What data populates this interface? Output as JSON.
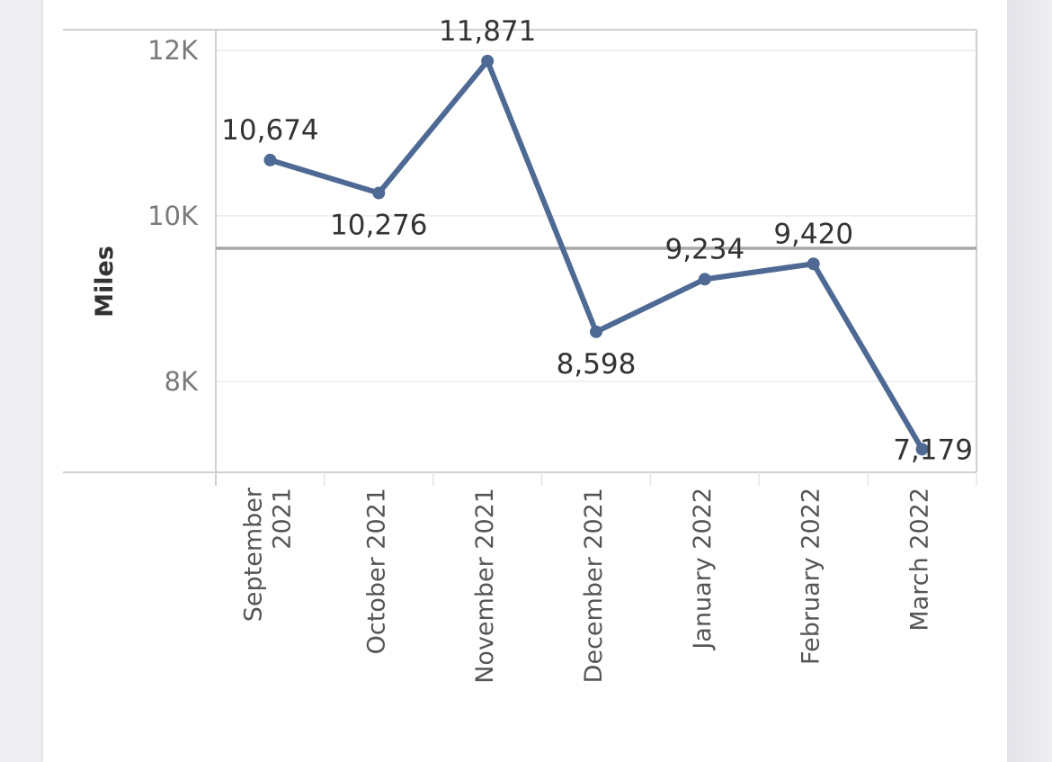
{
  "chart_data": {
    "type": "line",
    "title": "",
    "xlabel": "",
    "ylabel": "Miles",
    "categories": [
      "September 2021",
      "October 2021",
      "November 2021",
      "December 2021",
      "January 2022",
      "February 2022",
      "March 2022"
    ],
    "category_lines": [
      [
        "September",
        "2021"
      ],
      [
        "October 2021"
      ],
      [
        "November 2021"
      ],
      [
        "December 2021"
      ],
      [
        "January 2022"
      ],
      [
        "February 2022"
      ],
      [
        "March 2022"
      ]
    ],
    "series": [
      {
        "values": [
          10674,
          10276,
          11871,
          8598,
          9234,
          9420,
          7179
        ],
        "data_labels": [
          "10,674",
          "10,276",
          "11,871",
          "8,598",
          "9,234",
          "9,420",
          "7,179"
        ]
      }
    ],
    "reference_line": 9607,
    "ylim": [
      6900,
      12250
    ],
    "y_ticks": [
      {
        "value": 8000,
        "label": "8K"
      },
      {
        "value": 10000,
        "label": "10K"
      },
      {
        "value": 12000,
        "label": "12K"
      }
    ],
    "grid": true,
    "colors": {
      "series": "#4e6a94",
      "reference_line": "#a8a8a8",
      "grid": "#ececec",
      "axis": "#d0d0d0"
    }
  }
}
